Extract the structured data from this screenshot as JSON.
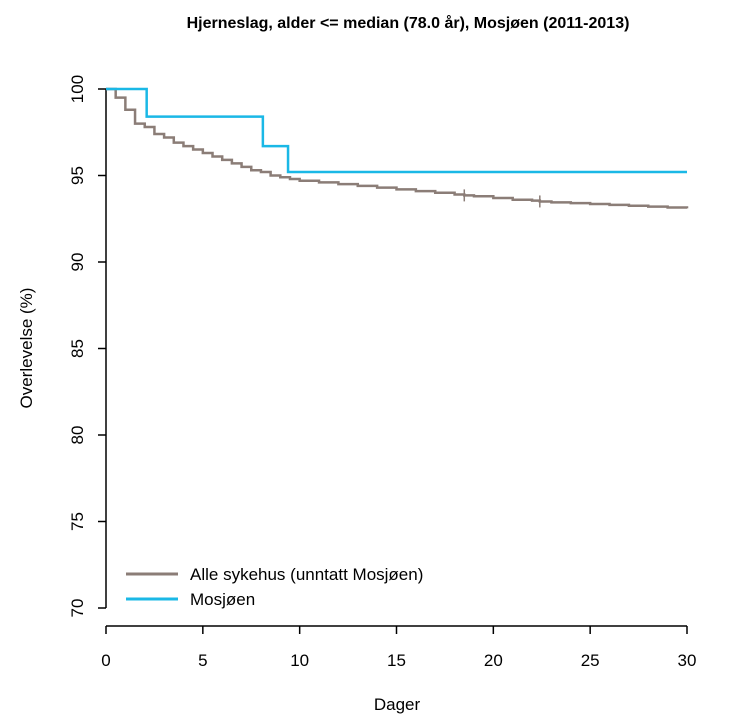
{
  "chart_data": {
    "type": "line",
    "title": "Hjerneslag, alder <= median (78.0 år), Mosjøen (2011-2013)",
    "xlabel": "Dager",
    "ylabel": "Overlevelse (%)",
    "xlim": [
      0,
      30
    ],
    "ylim": [
      70,
      100
    ],
    "xticks": [
      "0",
      "5",
      "10",
      "15",
      "20",
      "25",
      "30"
    ],
    "yticks": [
      "70",
      "75",
      "80",
      "85",
      "90",
      "95",
      "100"
    ],
    "grid": false,
    "legend_position": "bottom-left",
    "series": [
      {
        "name": "Alle sykehus (unntatt Mosjøen)",
        "color": "#8b7d77",
        "step": true,
        "x": [
          0,
          0.5,
          1,
          1.5,
          2,
          2.5,
          3,
          3.5,
          4,
          4.5,
          5,
          5.5,
          6,
          6.5,
          7,
          7.5,
          8,
          8.5,
          9,
          9.5,
          10,
          11,
          12,
          13,
          14,
          15,
          16,
          17,
          18,
          18.5,
          19,
          20,
          21,
          22,
          22.4,
          23,
          24,
          25,
          26,
          27,
          28,
          29,
          30
        ],
        "y": [
          100,
          99.5,
          98.8,
          98.0,
          97.8,
          97.4,
          97.2,
          96.9,
          96.7,
          96.5,
          96.3,
          96.1,
          95.9,
          95.7,
          95.5,
          95.3,
          95.2,
          95.0,
          94.9,
          94.8,
          94.7,
          94.6,
          94.5,
          94.4,
          94.3,
          94.2,
          94.1,
          94.0,
          93.9,
          93.85,
          93.8,
          93.7,
          93.6,
          93.55,
          93.5,
          93.45,
          93.4,
          93.35,
          93.3,
          93.25,
          93.2,
          93.15,
          93.1
        ],
        "censor_x": [
          18.5,
          22.4
        ],
        "censor_y": [
          93.85,
          93.5
        ]
      },
      {
        "name": "Mosjøen",
        "color": "#1ab8e6",
        "step": true,
        "x": [
          0,
          2.1,
          8.1,
          9.4,
          30
        ],
        "y": [
          100,
          98.4,
          96.7,
          95.2,
          95.2
        ]
      }
    ]
  }
}
